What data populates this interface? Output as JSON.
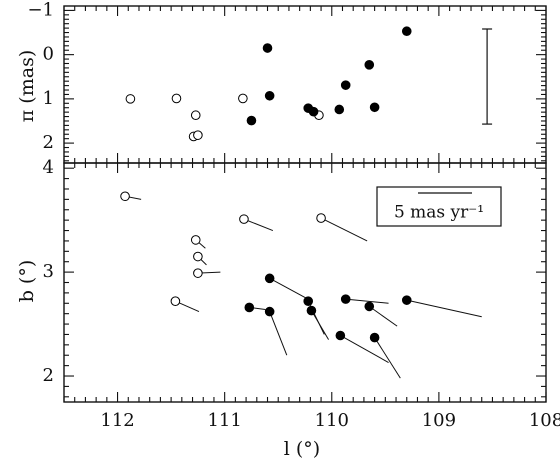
{
  "chart_data": [
    {
      "type": "scatter",
      "ylabel": "π (mas)",
      "xlim": [
        108,
        112.5
      ],
      "ylim": [
        2.45,
        -1.1
      ],
      "y_inverted": true,
      "x_reversed": true,
      "yticks": [
        "−1",
        "0",
        "1",
        "2"
      ],
      "ytick_values": [
        -1,
        0,
        1,
        2
      ],
      "series": [
        {
          "marker": "open-circle",
          "points": [
            {
              "x": 111.88,
              "y": 1.0
            },
            {
              "x": 111.45,
              "y": 0.99
            },
            {
              "x": 111.27,
              "y": 1.37
            },
            {
              "x": 111.29,
              "y": 1.85
            },
            {
              "x": 111.25,
              "y": 1.82
            },
            {
              "x": 110.83,
              "y": 0.99
            },
            {
              "x": 110.12,
              "y": 1.37
            }
          ]
        },
        {
          "marker": "filled-circle",
          "points": [
            {
              "x": 110.6,
              "y": -0.15
            },
            {
              "x": 110.58,
              "y": 0.93
            },
            {
              "x": 110.75,
              "y": 1.49
            },
            {
              "x": 110.22,
              "y": 1.21
            },
            {
              "x": 110.17,
              "y": 1.29
            },
            {
              "x": 109.93,
              "y": 1.24
            },
            {
              "x": 109.87,
              "y": 0.69
            },
            {
              "x": 109.65,
              "y": 0.23
            },
            {
              "x": 109.6,
              "y": 1.19
            },
            {
              "x": 109.3,
              "y": -0.53
            }
          ]
        }
      ],
      "error_bar": {
        "x": 108.55,
        "y_low": -0.58,
        "y_high": 1.57
      }
    },
    {
      "type": "scatter",
      "xlabel": "l (°)",
      "ylabel": "b (°)",
      "xlim": [
        108,
        112.5
      ],
      "ylim": [
        1.75,
        4.05
      ],
      "x_reversed": true,
      "xticks": [
        "112",
        "111",
        "110",
        "109",
        "108"
      ],
      "xtick_values": [
        112,
        111,
        110,
        109,
        108
      ],
      "yticks": [
        "2",
        "3",
        "4"
      ],
      "ytick_values": [
        2,
        3,
        4
      ],
      "legend": {
        "position": "top-right",
        "label": "5 mas yr⁻¹"
      },
      "series": [
        {
          "marker": "open-circle",
          "points": [
            {
              "x": 111.93,
              "y": 3.73,
              "x_end": 111.78,
              "y_end": 3.7
            },
            {
              "x": 110.82,
              "y": 3.51,
              "x_end": 110.55,
              "y_end": 3.4
            },
            {
              "x": 110.1,
              "y": 3.52,
              "x_end": 109.67,
              "y_end": 3.3
            },
            {
              "x": 111.27,
              "y": 3.31,
              "x_end": 111.18,
              "y_end": 3.23
            },
            {
              "x": 111.25,
              "y": 3.15,
              "x_end": 111.17,
              "y_end": 3.07
            },
            {
              "x": 111.25,
              "y": 2.99,
              "x_end": 111.04,
              "y_end": 3.0
            },
            {
              "x": 111.46,
              "y": 2.72,
              "x_end": 111.24,
              "y_end": 2.62
            }
          ]
        },
        {
          "marker": "filled-circle",
          "points": [
            {
              "x": 110.58,
              "y": 2.94,
              "x_end": 110.24,
              "y_end": 2.75
            },
            {
              "x": 110.77,
              "y": 2.66,
              "x_end": 110.62,
              "y_end": 2.64
            },
            {
              "x": 110.58,
              "y": 2.62,
              "x_end": 110.42,
              "y_end": 2.2
            },
            {
              "x": 110.22,
              "y": 2.72,
              "x_end": 110.07,
              "y_end": 2.4
            },
            {
              "x": 110.19,
              "y": 2.63,
              "x_end": 110.03,
              "y_end": 2.35
            },
            {
              "x": 109.92,
              "y": 2.39,
              "x_end": 109.47,
              "y_end": 2.13
            },
            {
              "x": 109.87,
              "y": 2.74,
              "x_end": 109.47,
              "y_end": 2.7
            },
            {
              "x": 109.65,
              "y": 2.67,
              "x_end": 109.39,
              "y_end": 2.48
            },
            {
              "x": 109.6,
              "y": 2.37,
              "x_end": 109.36,
              "y_end": 1.98
            },
            {
              "x": 109.3,
              "y": 2.73,
              "x_end": 108.6,
              "y_end": 2.57
            }
          ]
        }
      ]
    }
  ]
}
